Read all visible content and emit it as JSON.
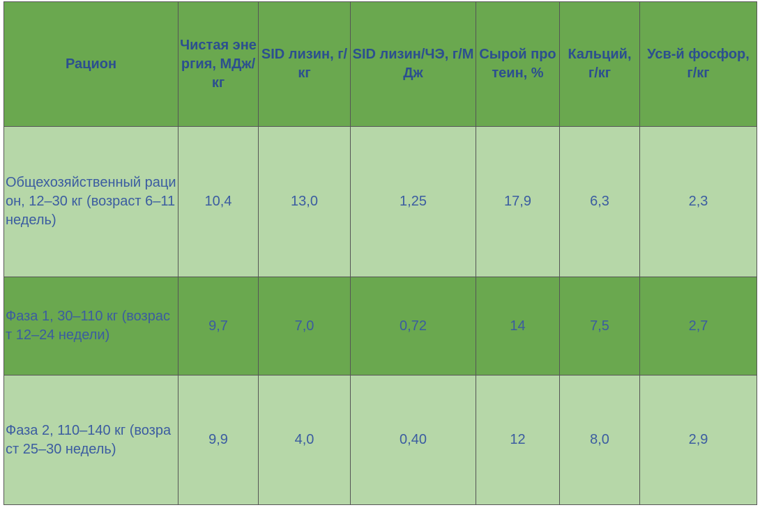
{
  "table": {
    "header": [
      "Рацион",
      "Чистая энергия, МДж/кг",
      "SID лизин, г/кг",
      "SID лизин/ЧЭ, г/МДж",
      "Сырой протеин, %",
      "Кальций, г/кг",
      "Усв-й фосфор, г/кг"
    ],
    "rows": [
      [
        "Общехозяйственный рацион, 12–30 кг (возраст 6–11 недель)",
        "10,4",
        "13,0",
        "1,25",
        "17,9",
        "6,3",
        "2,3"
      ],
      [
        "Фаза 1, 30–110 кг (возраст 12–24 недели)",
        "9,7",
        "7,0",
        "0,72",
        "14",
        "7,5",
        "2,7"
      ],
      [
        "Фаза 2, 110–140 кг (возраст 25–30 недель)",
        "9,9",
        "4,0",
        "0,40",
        "12",
        "8,0",
        "2,9"
      ]
    ]
  }
}
